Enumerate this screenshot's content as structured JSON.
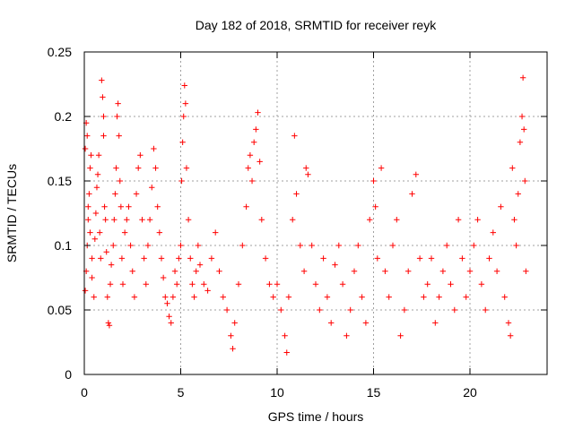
{
  "chart_data": {
    "type": "scatter",
    "title": "Day 182 of 2018, SRMTID for receiver reyk",
    "xlabel": "GPS time / hours",
    "ylabel": "SRMTID / TECUs",
    "xlim": [
      0,
      24
    ],
    "ylim": [
      0,
      0.25
    ],
    "x_ticks": [
      0,
      5,
      10,
      15,
      20
    ],
    "y_ticks": [
      0,
      0.05,
      0.1,
      0.15,
      0.2,
      0.25
    ],
    "x_tick_labels": [
      "0",
      "5",
      "10",
      "15",
      "20"
    ],
    "y_tick_labels": [
      "0",
      "0.05",
      "0.1",
      "0.15",
      "0.2",
      "0.25"
    ],
    "grid": true,
    "marker": "+",
    "color": "#ff0000",
    "series": [
      {
        "name": "",
        "points": [
          [
            0.05,
            0.065
          ],
          [
            0.1,
            0.08
          ],
          [
            0.15,
            0.1
          ],
          [
            0.2,
            0.12
          ],
          [
            0.25,
            0.14
          ],
          [
            0.3,
            0.16
          ],
          [
            0.35,
            0.17
          ],
          [
            0.4,
            0.09
          ],
          [
            0.1,
            0.195
          ],
          [
            0.15,
            0.185
          ],
          [
            0.05,
            0.175
          ],
          [
            0.2,
            0.13
          ],
          [
            0.3,
            0.11
          ],
          [
            0.4,
            0.075
          ],
          [
            0.5,
            0.06
          ],
          [
            0.55,
            0.105
          ],
          [
            0.6,
            0.125
          ],
          [
            0.65,
            0.145
          ],
          [
            0.7,
            0.155
          ],
          [
            0.75,
            0.17
          ],
          [
            0.8,
            0.11
          ],
          [
            0.85,
            0.09
          ],
          [
            0.9,
            0.228
          ],
          [
            0.95,
            0.215
          ],
          [
            1.0,
            0.2
          ],
          [
            1.0,
            0.185
          ],
          [
            1.05,
            0.13
          ],
          [
            1.1,
            0.12
          ],
          [
            1.15,
            0.095
          ],
          [
            1.2,
            0.06
          ],
          [
            1.25,
            0.04
          ],
          [
            1.3,
            0.038
          ],
          [
            1.35,
            0.07
          ],
          [
            1.4,
            0.085
          ],
          [
            1.5,
            0.1
          ],
          [
            1.55,
            0.12
          ],
          [
            1.6,
            0.14
          ],
          [
            1.65,
            0.16
          ],
          [
            1.7,
            0.2
          ],
          [
            1.75,
            0.21
          ],
          [
            1.8,
            0.185
          ],
          [
            1.85,
            0.15
          ],
          [
            1.9,
            0.13
          ],
          [
            1.95,
            0.09
          ],
          [
            2.0,
            0.07
          ],
          [
            2.1,
            0.11
          ],
          [
            2.2,
            0.12
          ],
          [
            2.3,
            0.13
          ],
          [
            2.4,
            0.1
          ],
          [
            2.5,
            0.08
          ],
          [
            2.6,
            0.06
          ],
          [
            2.7,
            0.14
          ],
          [
            2.8,
            0.16
          ],
          [
            2.9,
            0.17
          ],
          [
            3.0,
            0.12
          ],
          [
            3.1,
            0.09
          ],
          [
            3.2,
            0.07
          ],
          [
            3.3,
            0.1
          ],
          [
            3.4,
            0.12
          ],
          [
            3.5,
            0.145
          ],
          [
            3.6,
            0.175
          ],
          [
            3.7,
            0.16
          ],
          [
            3.8,
            0.13
          ],
          [
            3.9,
            0.11
          ],
          [
            4.0,
            0.09
          ],
          [
            4.1,
            0.075
          ],
          [
            4.2,
            0.06
          ],
          [
            4.3,
            0.055
          ],
          [
            4.4,
            0.045
          ],
          [
            4.5,
            0.04
          ],
          [
            4.6,
            0.06
          ],
          [
            4.7,
            0.08
          ],
          [
            4.8,
            0.07
          ],
          [
            4.9,
            0.09
          ],
          [
            5.0,
            0.1
          ],
          [
            5.05,
            0.15
          ],
          [
            5.1,
            0.18
          ],
          [
            5.15,
            0.2
          ],
          [
            5.2,
            0.224
          ],
          [
            5.25,
            0.21
          ],
          [
            5.3,
            0.16
          ],
          [
            5.4,
            0.12
          ],
          [
            5.5,
            0.09
          ],
          [
            5.6,
            0.07
          ],
          [
            5.7,
            0.06
          ],
          [
            5.8,
            0.08
          ],
          [
            5.9,
            0.1
          ],
          [
            6.0,
            0.085
          ],
          [
            6.2,
            0.07
          ],
          [
            6.4,
            0.065
          ],
          [
            6.6,
            0.09
          ],
          [
            6.8,
            0.11
          ],
          [
            7.0,
            0.08
          ],
          [
            7.2,
            0.06
          ],
          [
            7.4,
            0.05
          ],
          [
            7.6,
            0.03
          ],
          [
            7.7,
            0.02
          ],
          [
            7.8,
            0.04
          ],
          [
            8.0,
            0.07
          ],
          [
            8.2,
            0.1
          ],
          [
            8.4,
            0.13
          ],
          [
            8.5,
            0.16
          ],
          [
            8.6,
            0.17
          ],
          [
            8.7,
            0.15
          ],
          [
            8.8,
            0.18
          ],
          [
            8.9,
            0.19
          ],
          [
            9.0,
            0.203
          ],
          [
            9.1,
            0.165
          ],
          [
            9.2,
            0.12
          ],
          [
            9.4,
            0.09
          ],
          [
            9.6,
            0.07
          ],
          [
            9.8,
            0.06
          ],
          [
            10.0,
            0.07
          ],
          [
            10.2,
            0.05
          ],
          [
            10.4,
            0.03
          ],
          [
            10.5,
            0.017
          ],
          [
            10.6,
            0.06
          ],
          [
            10.8,
            0.12
          ],
          [
            10.9,
            0.185
          ],
          [
            11.0,
            0.14
          ],
          [
            11.2,
            0.1
          ],
          [
            11.4,
            0.08
          ],
          [
            11.5,
            0.16
          ],
          [
            11.6,
            0.155
          ],
          [
            11.8,
            0.1
          ],
          [
            12.0,
            0.07
          ],
          [
            12.2,
            0.05
          ],
          [
            12.4,
            0.09
          ],
          [
            12.6,
            0.06
          ],
          [
            12.8,
            0.04
          ],
          [
            13.0,
            0.085
          ],
          [
            13.2,
            0.1
          ],
          [
            13.4,
            0.07
          ],
          [
            13.6,
            0.03
          ],
          [
            13.8,
            0.05
          ],
          [
            14.0,
            0.08
          ],
          [
            14.2,
            0.1
          ],
          [
            14.4,
            0.06
          ],
          [
            14.6,
            0.04
          ],
          [
            14.8,
            0.12
          ],
          [
            15.0,
            0.15
          ],
          [
            15.1,
            0.13
          ],
          [
            15.2,
            0.09
          ],
          [
            15.4,
            0.16
          ],
          [
            15.6,
            0.08
          ],
          [
            15.8,
            0.06
          ],
          [
            16.0,
            0.1
          ],
          [
            16.2,
            0.12
          ],
          [
            16.4,
            0.03
          ],
          [
            16.6,
            0.05
          ],
          [
            16.8,
            0.08
          ],
          [
            17.0,
            0.14
          ],
          [
            17.2,
            0.155
          ],
          [
            17.4,
            0.09
          ],
          [
            17.6,
            0.06
          ],
          [
            17.8,
            0.07
          ],
          [
            18.0,
            0.09
          ],
          [
            18.2,
            0.04
          ],
          [
            18.4,
            0.06
          ],
          [
            18.6,
            0.08
          ],
          [
            18.8,
            0.1
          ],
          [
            19.0,
            0.07
          ],
          [
            19.2,
            0.05
          ],
          [
            19.4,
            0.12
          ],
          [
            19.6,
            0.09
          ],
          [
            19.8,
            0.06
          ],
          [
            20.0,
            0.08
          ],
          [
            20.2,
            0.1
          ],
          [
            20.4,
            0.12
          ],
          [
            20.6,
            0.07
          ],
          [
            20.8,
            0.05
          ],
          [
            21.0,
            0.09
          ],
          [
            21.2,
            0.11
          ],
          [
            21.4,
            0.08
          ],
          [
            21.6,
            0.13
          ],
          [
            21.8,
            0.06
          ],
          [
            22.0,
            0.04
          ],
          [
            22.1,
            0.03
          ],
          [
            22.2,
            0.16
          ],
          [
            22.3,
            0.12
          ],
          [
            22.4,
            0.1
          ],
          [
            22.5,
            0.14
          ],
          [
            22.6,
            0.18
          ],
          [
            22.7,
            0.2
          ],
          [
            22.75,
            0.23
          ],
          [
            22.8,
            0.19
          ],
          [
            22.85,
            0.15
          ],
          [
            22.9,
            0.08
          ]
        ]
      }
    ]
  }
}
